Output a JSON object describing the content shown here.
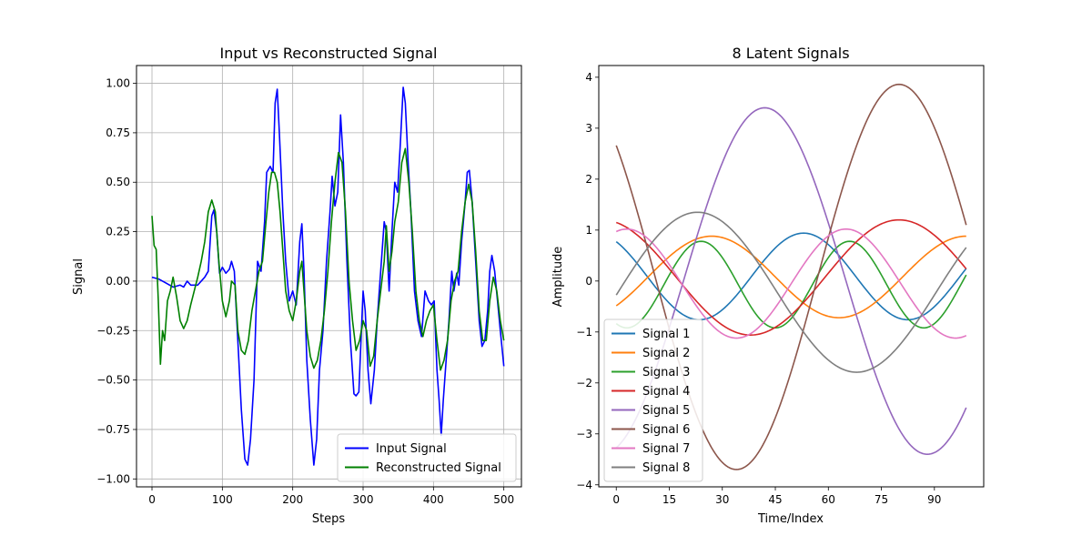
{
  "chart_data": [
    {
      "type": "line",
      "title": "Input vs Reconstructed Signal",
      "xlabel": "Steps",
      "ylabel": "Signal",
      "xlim": [
        -22,
        525
      ],
      "ylim": [
        -1.04,
        1.09
      ],
      "xticks": [
        0,
        100,
        200,
        300,
        400,
        500
      ],
      "yticks": [
        -1.0,
        -0.75,
        -0.5,
        -0.25,
        0.0,
        0.25,
        0.5,
        0.75,
        1.0
      ],
      "ytick_labels": [
        "−1.00",
        "−0.75",
        "−0.50",
        "−0.25",
        "0.00",
        "0.25",
        "0.50",
        "0.75",
        "1.00"
      ],
      "grid": true,
      "legend": "lower-right",
      "series": [
        {
          "name": "Input Signal",
          "color": "#0000ff",
          "points": [
            [
              0,
              0.02
            ],
            [
              10,
              0.01
            ],
            [
              20,
              -0.01
            ],
            [
              30,
              -0.03
            ],
            [
              40,
              -0.02
            ],
            [
              45,
              -0.03
            ],
            [
              50,
              0.0
            ],
            [
              55,
              -0.02
            ],
            [
              65,
              -0.02
            ],
            [
              75,
              0.02
            ],
            [
              80,
              0.05
            ],
            [
              85,
              0.33
            ],
            [
              88,
              0.36
            ],
            [
              92,
              0.25
            ],
            [
              96,
              0.04
            ],
            [
              100,
              0.07
            ],
            [
              105,
              0.04
            ],
            [
              110,
              0.06
            ],
            [
              113,
              0.1
            ],
            [
              117,
              0.05
            ],
            [
              122,
              -0.3
            ],
            [
              127,
              -0.65
            ],
            [
              132,
              -0.9
            ],
            [
              136,
              -0.93
            ],
            [
              140,
              -0.8
            ],
            [
              145,
              -0.5
            ],
            [
              150,
              0.1
            ],
            [
              155,
              0.05
            ],
            [
              160,
              0.3
            ],
            [
              163,
              0.55
            ],
            [
              168,
              0.58
            ],
            [
              172,
              0.55
            ],
            [
              175,
              0.9
            ],
            [
              178,
              0.97
            ],
            [
              181,
              0.75
            ],
            [
              186,
              0.35
            ],
            [
              190,
              0.1
            ],
            [
              195,
              -0.1
            ],
            [
              200,
              -0.05
            ],
            [
              205,
              -0.12
            ],
            [
              210,
              0.2
            ],
            [
              213,
              0.29
            ],
            [
              216,
              0.05
            ],
            [
              220,
              -0.4
            ],
            [
              225,
              -0.7
            ],
            [
              230,
              -0.93
            ],
            [
              234,
              -0.8
            ],
            [
              238,
              -0.45
            ],
            [
              243,
              -0.25
            ],
            [
              248,
              0.1
            ],
            [
              253,
              0.35
            ],
            [
              256,
              0.53
            ],
            [
              260,
              0.38
            ],
            [
              264,
              0.45
            ],
            [
              268,
              0.84
            ],
            [
              272,
              0.6
            ],
            [
              277,
              0.1
            ],
            [
              282,
              -0.3
            ],
            [
              287,
              -0.57
            ],
            [
              290,
              -0.58
            ],
            [
              294,
              -0.56
            ],
            [
              297,
              -0.3
            ],
            [
              300,
              -0.05
            ],
            [
              303,
              -0.15
            ],
            [
              307,
              -0.45
            ],
            [
              311,
              -0.62
            ],
            [
              316,
              -0.45
            ],
            [
              320,
              -0.2
            ],
            [
              325,
              0.05
            ],
            [
              330,
              0.3
            ],
            [
              333,
              0.25
            ],
            [
              337,
              -0.05
            ],
            [
              341,
              0.25
            ],
            [
              345,
              0.5
            ],
            [
              349,
              0.45
            ],
            [
              353,
              0.7
            ],
            [
              357,
              0.98
            ],
            [
              360,
              0.9
            ],
            [
              364,
              0.6
            ],
            [
              368,
              0.35
            ],
            [
              373,
              -0.05
            ],
            [
              378,
              -0.2
            ],
            [
              383,
              -0.28
            ],
            [
              388,
              -0.05
            ],
            [
              393,
              -0.1
            ],
            [
              397,
              -0.12
            ],
            [
              401,
              -0.1
            ],
            [
              405,
              -0.45
            ],
            [
              408,
              -0.6
            ],
            [
              411,
              -0.78
            ],
            [
              414,
              -0.6
            ],
            [
              418,
              -0.4
            ],
            [
              422,
              -0.2
            ],
            [
              426,
              0.05
            ],
            [
              429,
              -0.05
            ],
            [
              433,
              0.04
            ],
            [
              436,
              -0.02
            ],
            [
              440,
              0.2
            ],
            [
              445,
              0.4
            ],
            [
              448,
              0.55
            ],
            [
              451,
              0.56
            ],
            [
              455,
              0.4
            ],
            [
              460,
              0.1
            ],
            [
              465,
              -0.2
            ],
            [
              469,
              -0.33
            ],
            [
              473,
              -0.3
            ],
            [
              477,
              -0.15
            ],
            [
              480,
              0.05
            ],
            [
              483,
              0.13
            ],
            [
              487,
              0.05
            ],
            [
              491,
              -0.1
            ],
            [
              495,
              -0.25
            ],
            [
              500,
              -0.43
            ]
          ]
        },
        {
          "name": "Reconstructed Signal",
          "color": "#008000",
          "points": [
            [
              0,
              0.33
            ],
            [
              3,
              0.18
            ],
            [
              6,
              0.16
            ],
            [
              9,
              -0.1
            ],
            [
              12,
              -0.42
            ],
            [
              15,
              -0.25
            ],
            [
              18,
              -0.3
            ],
            [
              22,
              -0.1
            ],
            [
              26,
              -0.05
            ],
            [
              30,
              0.02
            ],
            [
              35,
              -0.08
            ],
            [
              40,
              -0.2
            ],
            [
              45,
              -0.24
            ],
            [
              50,
              -0.2
            ],
            [
              55,
              -0.12
            ],
            [
              60,
              -0.05
            ],
            [
              65,
              0.02
            ],
            [
              70,
              0.1
            ],
            [
              75,
              0.2
            ],
            [
              80,
              0.35
            ],
            [
              85,
              0.41
            ],
            [
              90,
              0.35
            ],
            [
              95,
              0.1
            ],
            [
              100,
              -0.1
            ],
            [
              105,
              -0.18
            ],
            [
              110,
              -0.1
            ],
            [
              113,
              0.0
            ],
            [
              118,
              -0.02
            ],
            [
              122,
              -0.25
            ],
            [
              127,
              -0.35
            ],
            [
              132,
              -0.37
            ],
            [
              137,
              -0.3
            ],
            [
              142,
              -0.15
            ],
            [
              147,
              -0.05
            ],
            [
              152,
              0.05
            ],
            [
              157,
              0.1
            ],
            [
              162,
              0.3
            ],
            [
              166,
              0.45
            ],
            [
              170,
              0.55
            ],
            [
              174,
              0.55
            ],
            [
              178,
              0.5
            ],
            [
              182,
              0.35
            ],
            [
              186,
              0.15
            ],
            [
              190,
              -0.05
            ],
            [
              195,
              -0.15
            ],
            [
              200,
              -0.2
            ],
            [
              205,
              -0.1
            ],
            [
              210,
              0.05
            ],
            [
              213,
              0.1
            ],
            [
              216,
              -0.05
            ],
            [
              220,
              -0.25
            ],
            [
              225,
              -0.38
            ],
            [
              230,
              -0.44
            ],
            [
              235,
              -0.4
            ],
            [
              240,
              -0.3
            ],
            [
              245,
              -0.15
            ],
            [
              250,
              0.05
            ],
            [
              255,
              0.3
            ],
            [
              260,
              0.5
            ],
            [
              265,
              0.65
            ],
            [
              270,
              0.6
            ],
            [
              275,
              0.35
            ],
            [
              280,
              0.0
            ],
            [
              285,
              -0.2
            ],
            [
              290,
              -0.35
            ],
            [
              295,
              -0.3
            ],
            [
              300,
              -0.2
            ],
            [
              305,
              -0.25
            ],
            [
              310,
              -0.43
            ],
            [
              315,
              -0.38
            ],
            [
              320,
              -0.2
            ],
            [
              325,
              -0.05
            ],
            [
              330,
              0.1
            ],
            [
              333,
              0.28
            ],
            [
              337,
              0.05
            ],
            [
              341,
              0.15
            ],
            [
              345,
              0.3
            ],
            [
              350,
              0.4
            ],
            [
              355,
              0.6
            ],
            [
              360,
              0.67
            ],
            [
              365,
              0.5
            ],
            [
              370,
              0.25
            ],
            [
              375,
              -0.05
            ],
            [
              380,
              -0.2
            ],
            [
              385,
              -0.28
            ],
            [
              390,
              -0.2
            ],
            [
              395,
              -0.15
            ],
            [
              400,
              -0.12
            ],
            [
              405,
              -0.3
            ],
            [
              410,
              -0.45
            ],
            [
              415,
              -0.4
            ],
            [
              420,
              -0.3
            ],
            [
              425,
              -0.1
            ],
            [
              430,
              0.0
            ],
            [
              435,
              0.05
            ],
            [
              440,
              0.25
            ],
            [
              445,
              0.4
            ],
            [
              450,
              0.49
            ],
            [
              455,
              0.4
            ],
            [
              460,
              0.15
            ],
            [
              465,
              -0.15
            ],
            [
              470,
              -0.3
            ],
            [
              475,
              -0.3
            ],
            [
              480,
              -0.1
            ],
            [
              485,
              0.02
            ],
            [
              490,
              -0.05
            ],
            [
              495,
              -0.2
            ],
            [
              500,
              -0.3
            ]
          ]
        }
      ]
    },
    {
      "type": "line",
      "title": "8 Latent Signals",
      "xlabel": "Time/Index",
      "ylabel": "Amplitude",
      "xlim": [
        -4.95,
        103.95
      ],
      "ylim": [
        -4.04,
        4.23
      ],
      "xticks": [
        0,
        15,
        30,
        45,
        60,
        75,
        90
      ],
      "yticks": [
        -4,
        -3,
        -2,
        -1,
        0,
        1,
        2,
        3,
        4
      ],
      "ytick_labels": [
        "−4",
        "−3",
        "−2",
        "−1",
        "0",
        "1",
        "2",
        "3",
        "4"
      ],
      "grid": false,
      "legend": "lower-left",
      "x_range": [
        0,
        99
      ],
      "series": [
        {
          "name": "Signal 1",
          "color": "#1f77b4",
          "amplitude": 0.85,
          "period": 59,
          "peak_x": 53,
          "offset": 0.09
        },
        {
          "name": "Signal 2",
          "color": "#ff7f0e",
          "amplitude": 0.8,
          "period": 72,
          "peak_x": 27,
          "offset": 0.08
        },
        {
          "name": "Signal 3",
          "color": "#2ca02c",
          "amplitude": 0.85,
          "period": 42,
          "peak_x": 24,
          "offset": -0.07
        },
        {
          "name": "Signal 4",
          "color": "#d62728",
          "amplitude": 1.13,
          "period": 84,
          "peak_x": 80,
          "offset": 0.07
        },
        {
          "name": "Signal 5",
          "color": "#9467bd",
          "amplitude": 3.4,
          "period": 92,
          "peak_x": 42,
          "offset": 0.0
        },
        {
          "name": "Signal 6",
          "color": "#8c564b",
          "amplitude": 3.78,
          "period": 92,
          "peak_x": 80,
          "offset": 0.08
        },
        {
          "name": "Signal 7",
          "color": "#e377c2",
          "amplitude": 1.07,
          "period": 62,
          "peak_x": 65,
          "offset": -0.05
        },
        {
          "name": "Signal 8",
          "color": "#7f7f7f",
          "amplitude": 1.57,
          "period": 90,
          "peak_x": 23,
          "offset": -0.22
        }
      ]
    }
  ]
}
